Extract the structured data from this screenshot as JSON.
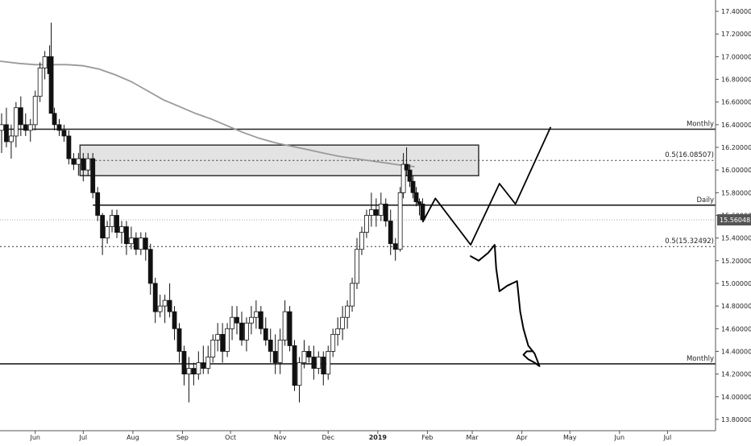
{
  "chart_data": {
    "type": "candlestick",
    "title": "",
    "xlabel": "",
    "ylabel": "",
    "ylim": [
      13.7,
      17.5
    ],
    "y_axis_position": "right",
    "y_ticks": [
      "17.40000",
      "17.20000",
      "17.00000",
      "16.80000",
      "16.60000",
      "16.40000",
      "16.20000",
      "16.00000",
      "15.80000",
      "15.60000",
      "15.40000",
      "15.20000",
      "15.00000",
      "14.80000",
      "14.60000",
      "14.40000",
      "14.20000",
      "14.00000",
      "13.80000"
    ],
    "x_ticks": [
      {
        "label": "Jun",
        "day": 0
      },
      {
        "label": "Jul",
        "day": 30
      },
      {
        "label": "Aug",
        "day": 61
      },
      {
        "label": "Sep",
        "day": 92
      },
      {
        "label": "Oct",
        "day": 122
      },
      {
        "label": "Nov",
        "day": 153
      },
      {
        "label": "Dec",
        "day": 183
      },
      {
        "label": "2019",
        "day": 214,
        "bold": true
      },
      {
        "label": "Feb",
        "day": 245
      },
      {
        "label": "Mar",
        "day": 273
      },
      {
        "label": "Apr",
        "day": 304
      },
      {
        "label": "May",
        "day": 334
      },
      {
        "label": "Jun",
        "day": 365
      },
      {
        "label": "Jul",
        "day": 395
      }
    ],
    "x_domain": [
      -22,
      425
    ],
    "last_price": "15.56048",
    "series": [
      {
        "kind": "candles",
        "columns": [
          "day",
          "open",
          "high",
          "low",
          "close"
        ],
        "values": [
          [
            -21,
            16.35,
            16.5,
            16.15,
            16.4
          ],
          [
            -18,
            16.4,
            16.55,
            16.2,
            16.25
          ],
          [
            -15,
            16.25,
            16.4,
            16.1,
            16.3
          ],
          [
            -12,
            16.3,
            16.6,
            16.2,
            16.55
          ],
          [
            -9,
            16.55,
            16.65,
            16.3,
            16.4
          ],
          [
            -6,
            16.4,
            16.5,
            16.3,
            16.35
          ],
          [
            -3,
            16.35,
            16.45,
            16.25,
            16.4
          ],
          [
            0,
            16.4,
            16.7,
            16.35,
            16.65
          ],
          [
            3,
            16.65,
            16.95,
            16.6,
            16.9
          ],
          [
            6,
            16.9,
            17.05,
            16.8,
            17.0
          ],
          [
            9,
            17.0,
            17.1,
            16.75,
            16.85
          ],
          [
            10,
            17.0,
            17.3,
            16.6,
            16.5
          ],
          [
            12,
            16.5,
            16.55,
            16.35,
            16.4
          ],
          [
            15,
            16.4,
            16.45,
            16.3,
            16.35
          ],
          [
            18,
            16.35,
            16.4,
            16.25,
            16.3
          ],
          [
            21,
            16.3,
            16.35,
            16.05,
            16.1
          ],
          [
            24,
            16.1,
            16.15,
            16.0,
            16.05
          ],
          [
            27,
            16.05,
            16.15,
            15.95,
            16.1
          ],
          [
            30,
            16.1,
            16.15,
            15.9,
            16.0
          ],
          [
            33,
            16.0,
            16.15,
            15.95,
            16.1
          ],
          [
            36,
            16.1,
            16.15,
            15.75,
            15.8
          ],
          [
            39,
            15.8,
            15.85,
            15.55,
            15.6
          ],
          [
            42,
            15.6,
            15.62,
            15.25,
            15.4
          ],
          [
            45,
            15.4,
            15.55,
            15.35,
            15.5
          ],
          [
            48,
            15.5,
            15.65,
            15.45,
            15.6
          ],
          [
            51,
            15.6,
            15.65,
            15.4,
            15.45
          ],
          [
            54,
            15.45,
            15.55,
            15.35,
            15.5
          ],
          [
            57,
            15.5,
            15.55,
            15.25,
            15.35
          ],
          [
            60,
            15.35,
            15.5,
            15.3,
            15.4
          ],
          [
            63,
            15.4,
            15.45,
            15.25,
            15.3
          ],
          [
            66,
            15.3,
            15.45,
            15.25,
            15.4
          ],
          [
            69,
            15.4,
            15.45,
            15.2,
            15.3
          ],
          [
            72,
            15.3,
            15.35,
            14.9,
            15.0
          ],
          [
            75,
            15.0,
            15.05,
            14.65,
            14.75
          ],
          [
            78,
            14.75,
            14.9,
            14.7,
            14.8
          ],
          [
            81,
            14.8,
            14.9,
            14.65,
            14.85
          ],
          [
            84,
            14.85,
            15.0,
            14.7,
            14.75
          ],
          [
            87,
            14.75,
            14.8,
            14.5,
            14.6
          ],
          [
            90,
            14.6,
            14.65,
            14.3,
            14.4
          ],
          [
            93,
            14.4,
            14.45,
            14.1,
            14.2
          ],
          [
            96,
            14.2,
            14.35,
            13.95,
            14.25
          ],
          [
            99,
            14.25,
            14.3,
            14.1,
            14.2
          ],
          [
            102,
            14.2,
            14.4,
            14.15,
            14.3
          ],
          [
            105,
            14.3,
            14.45,
            14.2,
            14.25
          ],
          [
            108,
            14.25,
            14.45,
            14.2,
            14.35
          ],
          [
            111,
            14.35,
            14.55,
            14.3,
            14.5
          ],
          [
            114,
            14.5,
            14.65,
            14.4,
            14.55
          ],
          [
            117,
            14.55,
            14.65,
            14.3,
            14.4
          ],
          [
            120,
            14.4,
            14.65,
            14.35,
            14.6
          ],
          [
            123,
            14.6,
            14.8,
            14.5,
            14.7
          ],
          [
            126,
            14.7,
            14.8,
            14.55,
            14.65
          ],
          [
            129,
            14.65,
            14.75,
            14.45,
            14.5
          ],
          [
            132,
            14.5,
            14.7,
            14.4,
            14.65
          ],
          [
            135,
            14.65,
            14.8,
            14.55,
            14.7
          ],
          [
            138,
            14.7,
            14.85,
            14.6,
            14.75
          ],
          [
            141,
            14.75,
            14.8,
            14.55,
            14.6
          ],
          [
            144,
            14.6,
            14.7,
            14.45,
            14.5
          ],
          [
            147,
            14.5,
            14.6,
            14.3,
            14.4
          ],
          [
            150,
            14.4,
            14.55,
            14.2,
            14.3
          ],
          [
            153,
            14.3,
            14.6,
            14.2,
            14.5
          ],
          [
            156,
            14.5,
            14.85,
            14.45,
            14.75
          ],
          [
            159,
            14.75,
            14.8,
            14.4,
            14.45
          ],
          [
            162,
            14.45,
            14.5,
            14.05,
            14.1
          ],
          [
            165,
            14.1,
            14.35,
            13.95,
            14.3
          ],
          [
            168,
            14.3,
            14.5,
            14.25,
            14.4
          ],
          [
            171,
            14.4,
            14.45,
            14.3,
            14.35
          ],
          [
            174,
            14.35,
            14.45,
            14.15,
            14.25
          ],
          [
            177,
            14.25,
            14.4,
            14.2,
            14.35
          ],
          [
            180,
            14.35,
            14.4,
            14.1,
            14.2
          ],
          [
            183,
            14.2,
            14.45,
            14.15,
            14.4
          ],
          [
            186,
            14.4,
            14.6,
            14.35,
            14.55
          ],
          [
            189,
            14.55,
            14.7,
            14.45,
            14.6
          ],
          [
            192,
            14.6,
            14.8,
            14.5,
            14.7
          ],
          [
            195,
            14.7,
            14.85,
            14.6,
            14.8
          ],
          [
            198,
            14.8,
            15.05,
            14.75,
            15.0
          ],
          [
            201,
            15.0,
            15.4,
            14.95,
            15.3
          ],
          [
            204,
            15.3,
            15.5,
            15.25,
            15.45
          ],
          [
            207,
            15.45,
            15.65,
            15.4,
            15.6
          ],
          [
            210,
            15.6,
            15.8,
            15.5,
            15.65
          ],
          [
            213,
            15.65,
            15.75,
            15.5,
            15.6
          ],
          [
            216,
            15.6,
            15.8,
            15.55,
            15.7
          ],
          [
            219,
            15.7,
            15.75,
            15.5,
            15.55
          ],
          [
            222,
            15.55,
            15.65,
            15.25,
            15.35
          ],
          [
            225,
            15.35,
            15.4,
            15.2,
            15.3
          ],
          [
            228,
            15.3,
            15.85,
            15.28,
            15.8
          ],
          [
            230,
            15.8,
            16.15,
            15.75,
            16.05
          ],
          [
            232,
            16.05,
            16.2,
            15.95,
            16.0
          ],
          [
            234,
            16.0,
            16.05,
            15.85,
            15.9
          ],
          [
            236,
            15.9,
            15.95,
            15.75,
            15.8
          ],
          [
            238,
            15.8,
            15.85,
            15.68,
            15.72
          ],
          [
            240,
            15.72,
            15.75,
            15.6,
            15.7
          ],
          [
            242,
            15.7,
            15.75,
            15.55,
            15.56
          ]
        ]
      },
      {
        "kind": "moving-average",
        "columns": [
          "day",
          "value"
        ],
        "values": [
          [
            -22,
            16.96
          ],
          [
            -10,
            16.94
          ],
          [
            0,
            16.93
          ],
          [
            10,
            16.93
          ],
          [
            20,
            16.93
          ],
          [
            30,
            16.92
          ],
          [
            40,
            16.89
          ],
          [
            50,
            16.84
          ],
          [
            60,
            16.78
          ],
          [
            70,
            16.7
          ],
          [
            80,
            16.62
          ],
          [
            90,
            16.56
          ],
          [
            100,
            16.5
          ],
          [
            110,
            16.45
          ],
          [
            120,
            16.39
          ],
          [
            130,
            16.33
          ],
          [
            140,
            16.28
          ],
          [
            150,
            16.24
          ],
          [
            160,
            16.21
          ],
          [
            170,
            16.18
          ],
          [
            180,
            16.15
          ],
          [
            190,
            16.12
          ],
          [
            200,
            16.1
          ],
          [
            210,
            16.08
          ],
          [
            220,
            16.06
          ],
          [
            230,
            16.04
          ],
          [
            237,
            16.03
          ]
        ]
      }
    ],
    "levels": [
      {
        "label": "Monthly",
        "value": 16.36,
        "style": "solid",
        "from_day": -22
      },
      {
        "label": "0.5(16.08507)",
        "value": 16.085,
        "style": "dotted",
        "from_day": 30
      },
      {
        "label": "Daily",
        "value": 15.69,
        "style": "solid",
        "from_day": 36
      },
      {
        "label": "",
        "value": 15.56048,
        "style": "thin-dotted",
        "from_day": -22
      },
      {
        "label": "0.5(15.32492)",
        "value": 15.325,
        "style": "dotted",
        "from_day": -22
      },
      {
        "label": "Monthly",
        "value": 14.29,
        "style": "solid",
        "from_day": -22
      }
    ],
    "zone": {
      "day_start": 28,
      "day_end": 277,
      "top": 16.22,
      "bottom": 15.95
    },
    "drawing_projection_up": [
      [
        242,
        15.54
      ],
      [
        250,
        15.75
      ],
      [
        272,
        15.34
      ],
      [
        290,
        15.88
      ],
      [
        300,
        15.7
      ],
      [
        322,
        16.38
      ]
    ],
    "drawing_projection_down": [
      [
        272,
        15.24
      ],
      [
        277,
        15.2
      ],
      [
        283,
        15.27
      ],
      [
        287,
        15.34
      ],
      [
        288,
        15.13
      ],
      [
        290,
        14.93
      ],
      [
        295,
        14.98
      ],
      [
        301,
        15.02
      ],
      [
        303,
        14.75
      ],
      [
        305,
        14.6
      ],
      [
        308,
        14.45
      ],
      [
        312,
        14.38
      ],
      [
        315,
        14.27
      ],
      [
        312,
        14.3
      ],
      [
        308,
        14.33
      ],
      [
        305,
        14.37
      ],
      [
        307,
        14.4
      ],
      [
        311,
        14.4
      ]
    ]
  }
}
